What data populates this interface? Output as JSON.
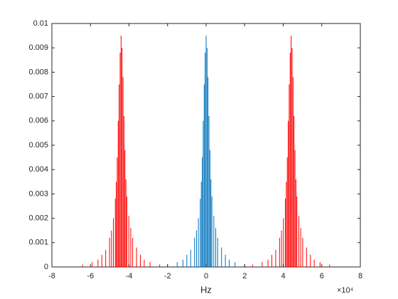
{
  "chart_data": {
    "type": "stem",
    "xlabel": "Hz",
    "x_exponent": "×10⁴",
    "xlim": [
      -80000,
      80000
    ],
    "xticks": [
      {
        "value": -80000,
        "label": "-8"
      },
      {
        "value": -60000,
        "label": "-6"
      },
      {
        "value": -40000,
        "label": "-4"
      },
      {
        "value": -20000,
        "label": "-2"
      },
      {
        "value": 0,
        "label": "0"
      },
      {
        "value": 20000,
        "label": "2"
      },
      {
        "value": 40000,
        "label": "4"
      },
      {
        "value": 60000,
        "label": "6"
      },
      {
        "value": 80000,
        "label": "8"
      }
    ],
    "ylim": [
      0,
      0.01
    ],
    "yticks": [
      0,
      0.001,
      0.002,
      0.003,
      0.004,
      0.005,
      0.006,
      0.007,
      0.008,
      0.009,
      0.01
    ],
    "grid": false,
    "series": [
      {
        "color": "#ff0000",
        "x": [
          -64100,
          -59100,
          -56100,
          -54100,
          -52100,
          -50100,
          -49100,
          -48100,
          -47100,
          -46600,
          -46100,
          -45600,
          -45100,
          -44600,
          -44100,
          -43600,
          -43100,
          -42600,
          -42100,
          -41600,
          -41100,
          -40100,
          -39100,
          -38100,
          -36100,
          -34100,
          -32100,
          -29100,
          -24100,
          24100,
          29100,
          32100,
          34100,
          36100,
          38100,
          39100,
          40100,
          41100,
          41600,
          42100,
          42600,
          43100,
          43600,
          44100,
          44600,
          45100,
          45600,
          46100,
          46600,
          47100,
          48100,
          49100,
          50100,
          52100,
          54100,
          56100,
          59100,
          64100
        ],
        "values": [
          0.0001,
          0.0002,
          0.0003,
          0.0005,
          0.0007,
          0.0012,
          0.0015,
          0.002,
          0.0028,
          0.0035,
          0.0045,
          0.006,
          0.0075,
          0.0088,
          0.0095,
          0.009,
          0.0078,
          0.0062,
          0.0048,
          0.0036,
          0.0029,
          0.0021,
          0.0016,
          0.0012,
          0.0008,
          0.0005,
          0.0003,
          0.0002,
          0.0001,
          0.0001,
          0.0002,
          0.0003,
          0.0005,
          0.0007,
          0.0012,
          0.0015,
          0.002,
          0.0028,
          0.0035,
          0.0045,
          0.006,
          0.0075,
          0.0088,
          0.0095,
          0.009,
          0.0078,
          0.0062,
          0.0048,
          0.0036,
          0.0029,
          0.0021,
          0.0016,
          0.0012,
          0.0008,
          0.0005,
          0.0003,
          0.0002,
          0.0001
        ]
      },
      {
        "color": "#0072bd",
        "x": [
          -20000,
          -15000,
          -12000,
          -10000,
          -8000,
          -6000,
          -5000,
          -4000,
          -3000,
          -2500,
          -2000,
          -1500,
          -1000,
          -500,
          0,
          500,
          1000,
          1500,
          2000,
          2500,
          3000,
          4000,
          5000,
          6000,
          8000,
          10000,
          12000,
          15000,
          20000
        ],
        "values": [
          0.0001,
          0.0002,
          0.0003,
          0.0005,
          0.0007,
          0.0012,
          0.0015,
          0.002,
          0.0028,
          0.0035,
          0.0045,
          0.006,
          0.0075,
          0.0088,
          0.0095,
          0.009,
          0.0078,
          0.0062,
          0.0048,
          0.0036,
          0.0029,
          0.0021,
          0.0016,
          0.0012,
          0.0008,
          0.0005,
          0.0003,
          0.0002,
          0.0001
        ]
      }
    ]
  }
}
